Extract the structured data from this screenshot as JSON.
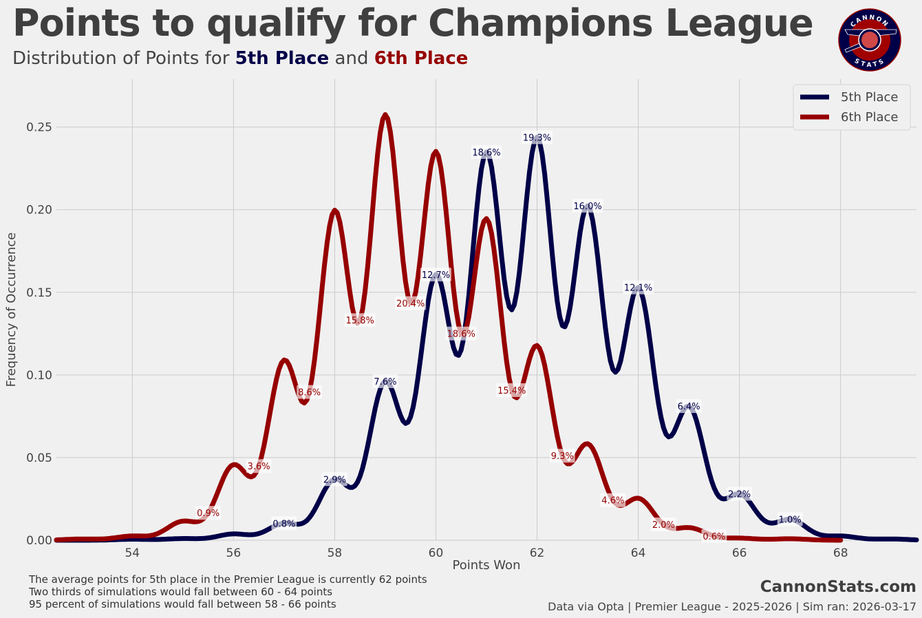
{
  "header": {
    "title": "Points to qualify for Champions League",
    "subtitle_prefix": "Distribution of Points for ",
    "subtitle_5th": "5th Place",
    "subtitle_and": " and ",
    "subtitle_6th": "6th Place",
    "logo_text_top": "CANNON",
    "logo_text_bottom": "STATS"
  },
  "chart_data": {
    "type": "line",
    "title": "Points to qualify for Champions League",
    "xlabel": "Points Won",
    "ylabel": "Frequency of Occurrence",
    "xlim": [
      52.5,
      69.5
    ],
    "ylim": [
      0,
      0.279
    ],
    "xticks": [
      54,
      56,
      58,
      60,
      62,
      64,
      66,
      68
    ],
    "yticks": [
      0,
      0.05,
      0.1,
      0.15,
      0.2,
      0.25
    ],
    "ytick_labels": [
      "0.00",
      "0.05",
      "0.10",
      "0.15",
      "0.20",
      "0.25"
    ],
    "grid": true,
    "legend_position": "top-right",
    "kde_bandwidth": 0.32,
    "series": [
      {
        "name": "5th Place",
        "color": "#000048",
        "label_offset": 0,
        "points": [
          54,
          55,
          56,
          57,
          58,
          59,
          60,
          61,
          62,
          63,
          64,
          65,
          66,
          67,
          68,
          69
        ],
        "probabilities": [
          0.0005,
          0.0008,
          0.003,
          0.008,
          0.029,
          0.076,
          0.127,
          0.186,
          0.193,
          0.16,
          0.121,
          0.064,
          0.022,
          0.01,
          0.002,
          0.0006
        ],
        "labels": [
          "",
          "",
          "",
          "0.8%",
          "2.9%",
          "7.6%",
          "12.7%",
          "18.6%",
          "19.3%",
          "16.0%",
          "12.1%",
          "6.4%",
          "2.2%",
          "1.0%",
          "",
          ""
        ]
      },
      {
        "name": "6th Place",
        "color": "#960000",
        "label_offset": 0.5,
        "points": [
          53,
          54,
          55,
          56,
          57,
          58,
          59,
          60,
          61,
          62,
          63,
          64,
          65,
          66,
          67
        ],
        "probabilities": [
          0.0006,
          0.002,
          0.009,
          0.036,
          0.086,
          0.158,
          0.204,
          0.186,
          0.154,
          0.093,
          0.046,
          0.02,
          0.006,
          0.001,
          0.0007
        ],
        "labels": [
          "",
          "",
          "0.9%",
          "3.6%",
          "8.6%",
          "15.8%",
          "20.4%",
          "18.6%",
          "15.4%",
          "9.3%",
          "4.6%",
          "2.0%",
          "0.6%",
          "",
          ""
        ]
      }
    ]
  },
  "footer": {
    "note_lines": [
      "The average points for 5th place in the Premier League is currently 62 points",
      "Two thirds of simulations would fall between 60 - 64 points",
      "95 percent of simulations would fall between 58 - 66 points"
    ],
    "brand": "CannonStats.com",
    "credit": "Data via Opta | Premier League - 2025-2026 | Sim ran: 2026-03-17"
  }
}
